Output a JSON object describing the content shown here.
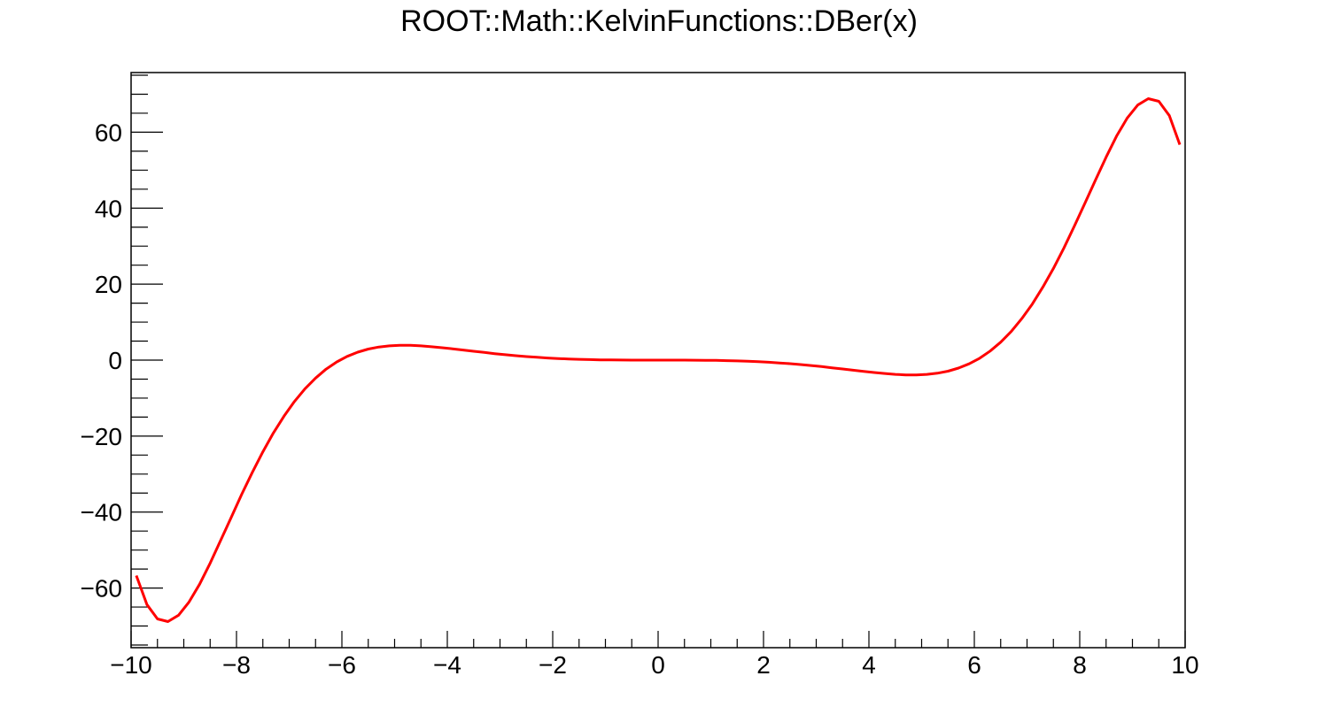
{
  "colors": {
    "background": "#ffffff",
    "axis": "#000000",
    "curve": "#ff0000"
  },
  "chart_data": {
    "type": "line",
    "title": "ROOT::Math::KelvinFunctions::DBer(x)",
    "xlabel": "",
    "ylabel": "",
    "grid": false,
    "legend": false,
    "xlim": [
      -10,
      10
    ],
    "ylim": [
      -75.7,
      75.7
    ],
    "x_major_ticks": [
      -10,
      -8,
      -6,
      -4,
      -2,
      0,
      2,
      4,
      6,
      8,
      10
    ],
    "x_tick_labels": [
      "−10",
      "−8",
      "−6",
      "−4",
      "−2",
      "0",
      "2",
      "4",
      "6",
      "8",
      "10"
    ],
    "x_minor_step": 0.5,
    "y_major_ticks": [
      -60,
      -40,
      -20,
      0,
      20,
      40,
      60
    ],
    "y_tick_labels": [
      "−60",
      "−40",
      "−20",
      "0",
      "20",
      "40",
      "60"
    ],
    "y_minor_step": 5,
    "y_minor_min": -75,
    "y_minor_max": 75,
    "line_color": "#ff0000",
    "line_width": 3,
    "x": [
      -9.9,
      -9.7,
      -9.5,
      -9.3,
      -9.1,
      -8.9,
      -8.7,
      -8.5,
      -8.3,
      -8.1,
      -7.9,
      -7.7,
      -7.5,
      -7.3,
      -7.1,
      -6.9,
      -6.7,
      -6.5,
      -6.3,
      -6.1,
      -5.9,
      -5.7,
      -5.5,
      -5.3,
      -5.1,
      -4.9,
      -4.7,
      -4.5,
      -4.3,
      -4.1,
      -3.9,
      -3.7,
      -3.5,
      -3.3,
      -3.1,
      -2.9,
      -2.7,
      -2.5,
      -2.3,
      -2.1,
      -1.9,
      -1.7,
      -1.5,
      -1.3,
      -1.1,
      -0.9,
      -0.7,
      -0.5,
      -0.3,
      -0.1,
      0.1,
      0.3,
      0.5,
      0.7,
      0.9,
      1.1,
      1.3,
      1.5,
      1.7,
      1.9,
      2.1,
      2.3,
      2.5,
      2.7,
      2.9,
      3.1,
      3.3,
      3.5,
      3.7,
      3.9,
      4.1,
      4.3,
      4.5,
      4.7,
      4.9,
      5.1,
      5.3,
      5.5,
      5.7,
      5.9,
      6.1,
      6.3,
      6.5,
      6.7,
      6.9,
      7.1,
      7.3,
      7.5,
      7.7,
      7.9,
      8.1,
      8.3,
      8.5,
      8.7,
      8.9,
      9.1,
      9.3,
      9.5,
      9.7,
      9.9
    ],
    "y": [
      -56.72,
      -64.36,
      -68.13,
      -68.83,
      -67.15,
      -63.68,
      -58.98,
      -53.44,
      -47.47,
      -41.36,
      -35.31,
      -29.53,
      -24.13,
      -19.19,
      -14.77,
      -10.89,
      -7.54,
      -4.72,
      -2.38,
      -0.49,
      0.98,
      2.1,
      2.91,
      3.44,
      3.76,
      3.89,
      3.88,
      3.75,
      3.52,
      3.27,
      2.98,
      2.66,
      2.34,
      2.02,
      1.71,
      1.43,
      1.17,
      0.94,
      0.74,
      0.57,
      0.42,
      0.3,
      0.21,
      0.14,
      0.08,
      0.05,
      0.02,
      0.01,
      0.0,
      0.0,
      0.0,
      0.0,
      -0.01,
      -0.02,
      -0.05,
      -0.08,
      -0.14,
      -0.21,
      -0.3,
      -0.42,
      -0.57,
      -0.74,
      -0.94,
      -1.17,
      -1.43,
      -1.71,
      -2.02,
      -2.34,
      -2.66,
      -2.98,
      -3.27,
      -3.52,
      -3.75,
      -3.88,
      -3.89,
      -3.76,
      -3.44,
      -2.91,
      -2.1,
      -0.98,
      0.49,
      2.38,
      4.72,
      7.54,
      10.89,
      14.77,
      19.19,
      24.13,
      29.53,
      35.31,
      41.36,
      47.47,
      53.44,
      58.98,
      63.68,
      67.15,
      68.83,
      68.13,
      64.36,
      56.72
    ]
  }
}
